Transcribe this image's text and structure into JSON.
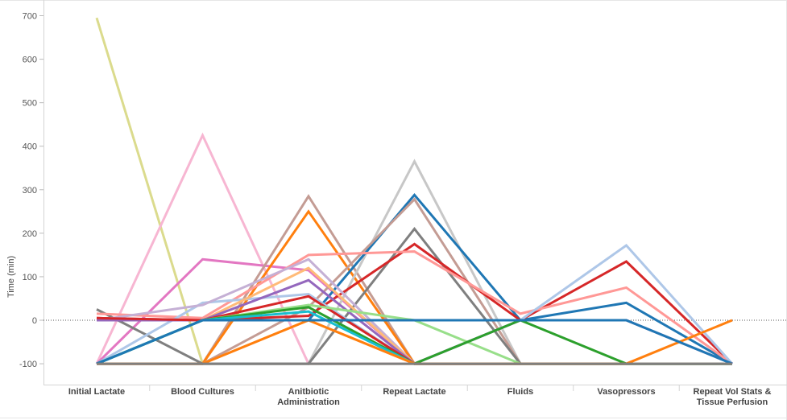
{
  "chart_data": {
    "type": "line",
    "title": "",
    "xlabel": "",
    "ylabel": "Time (min)",
    "ylim": [
      -145,
      720
    ],
    "yticks": [
      -100,
      0,
      100,
      200,
      300,
      400,
      500,
      600,
      700
    ],
    "ytick_labels": [
      "-100",
      "0",
      "100",
      "200",
      "300",
      "400",
      "500",
      "600",
      "700"
    ],
    "zero_line": "dotted",
    "grid": false,
    "categories": [
      [
        "Initial Lactate"
      ],
      [
        "Blood Cultures"
      ],
      [
        "Anitbiotic",
        "Administration"
      ],
      [
        "Repeat Lactate"
      ],
      [
        "Fluids"
      ],
      [
        "Vasopressors"
      ],
      [
        "Repeat Vol Stats &",
        "Tissue Perfusion"
      ]
    ],
    "series": [
      {
        "color": "#dbdb8d",
        "values": [
          695,
          -100,
          -100,
          -100,
          -100,
          -100,
          -100
        ]
      },
      {
        "color": "#f7b6d2",
        "values": [
          -100,
          425,
          -100,
          -100,
          -100,
          -100,
          -100
        ]
      },
      {
        "color": "#e377c2",
        "values": [
          -100,
          140,
          115,
          -100,
          -100,
          -100,
          -100
        ]
      },
      {
        "color": "#c49c94",
        "values": [
          -100,
          -100,
          285,
          -100,
          -100,
          -100,
          -100
        ]
      },
      {
        "color": "#ff7f0e",
        "values": [
          -100,
          -100,
          250,
          -100,
          -100,
          -100,
          -100
        ]
      },
      {
        "color": "#c7c7c7",
        "values": [
          -100,
          -100,
          -100,
          365,
          -100,
          -100,
          -100
        ]
      },
      {
        "color": "#1f77b4",
        "values": [
          -100,
          0,
          0,
          288,
          0,
          40,
          -100
        ]
      },
      {
        "color": "#c49c94",
        "values": [
          -100,
          -100,
          30,
          278,
          -100,
          -100,
          -100
        ]
      },
      {
        "color": "#7f7f7f",
        "values": [
          25,
          -100,
          -100,
          210,
          -100,
          -100,
          -100
        ]
      },
      {
        "color": "#d62728",
        "values": [
          5,
          0,
          10,
          175,
          0,
          135,
          -100
        ]
      },
      {
        "color": "#ff9896",
        "values": [
          15,
          5,
          150,
          158,
          15,
          75,
          -100
        ]
      },
      {
        "color": "#aec7e8",
        "values": [
          -100,
          40,
          60,
          -100,
          0,
          172,
          -100
        ]
      },
      {
        "color": "#c5b0d5",
        "values": [
          0,
          35,
          140,
          -100,
          -100,
          -100,
          -100
        ]
      },
      {
        "color": "#ffbb78",
        "values": [
          0,
          0,
          120,
          -100,
          -100,
          -100,
          -100
        ]
      },
      {
        "color": "#9467bd",
        "values": [
          0,
          0,
          92,
          -100,
          0,
          0,
          -100
        ]
      },
      {
        "color": "#d62728",
        "values": [
          5,
          0,
          55,
          -100,
          -100,
          -100,
          -100
        ]
      },
      {
        "color": "#98df8a",
        "values": [
          -100,
          0,
          35,
          0,
          -100,
          -100,
          -100
        ]
      },
      {
        "color": "#2ca02c",
        "values": [
          -100,
          0,
          30,
          -100,
          0,
          -100,
          -100
        ]
      },
      {
        "color": "#17becf",
        "values": [
          -100,
          0,
          20,
          -100,
          -100,
          -100,
          -100
        ]
      },
      {
        "color": "#ffbb78",
        "values": [
          -100,
          -100,
          0,
          -100,
          -100,
          -100,
          -100
        ]
      },
      {
        "color": "#ff7f0e",
        "values": [
          -100,
          -100,
          0,
          -100,
          -100,
          -100,
          0
        ]
      },
      {
        "color": "#1f77b4",
        "values": [
          -100,
          0,
          0,
          0,
          0,
          0,
          -100
        ]
      },
      {
        "color": "#7f7f7f",
        "values": [
          -100,
          -100,
          -100,
          -100,
          -100,
          -100,
          -100
        ]
      }
    ]
  }
}
